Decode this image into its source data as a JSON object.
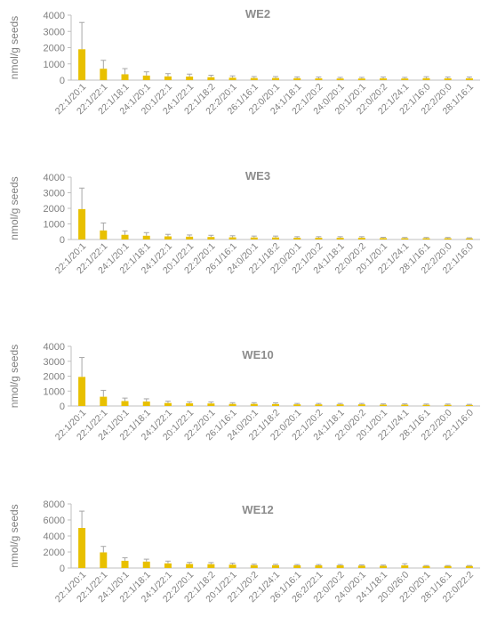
{
  "figure": {
    "bar_color": "#E8C000",
    "axis_color": "#bfbfbf",
    "text_color": "#7f7f7f",
    "title_color": "#8c8c8c"
  },
  "chart_data": [
    {
      "type": "bar",
      "title": "WE2",
      "ylabel": "nmol/g seeds",
      "xlabel": "",
      "ylim": [
        0,
        4000
      ],
      "yticks": [
        0,
        1000,
        2000,
        3000,
        4000
      ],
      "error_bars": true,
      "categories": [
        "22:1/20:1",
        "22:1/22:1",
        "22:1/18:1",
        "24:1/20:1",
        "20:1/22:1",
        "24:1/22:1",
        "22:1/18:2",
        "22:2/20:1",
        "26:1/16:1",
        "22:0/20:1",
        "24:1/18:1",
        "22:1/20:2",
        "24:0/20:1",
        "20:1/20:1",
        "22:0/20:2",
        "22:1/24:1",
        "22:1/16:0",
        "22:2/20:0",
        "28:1/16:1"
      ],
      "values": [
        1900,
        700,
        360,
        280,
        230,
        220,
        180,
        150,
        130,
        130,
        120,
        110,
        100,
        100,
        110,
        100,
        120,
        110,
        110
      ],
      "errors": [
        1650,
        520,
        350,
        230,
        170,
        150,
        120,
        110,
        90,
        90,
        80,
        80,
        70,
        70,
        80,
        70,
        90,
        80,
        80
      ]
    },
    {
      "type": "bar",
      "title": "WE3",
      "ylabel": "nmol/g seeds",
      "xlabel": "",
      "ylim": [
        0,
        4000
      ],
      "yticks": [
        0,
        1000,
        2000,
        3000,
        4000
      ],
      "error_bars": true,
      "categories": [
        "22:1/20:1",
        "22:1/22:1",
        "24:1/20:1",
        "22:1/18:1",
        "24:1/22:1",
        "20:1/22:1",
        "22:2/20:1",
        "26:1/16:1",
        "24:0/20:1",
        "22:1/18:2",
        "22:0/20:1",
        "22:1/20:2",
        "24:1/18:1",
        "22:0/20:2",
        "20:1/20:1",
        "22:1/24:1",
        "28:1/16:1",
        "22:2/20:0",
        "22:1/16:0"
      ],
      "values": [
        1950,
        580,
        300,
        240,
        200,
        180,
        160,
        140,
        130,
        130,
        110,
        110,
        110,
        110,
        90,
        80,
        80,
        80,
        70
      ],
      "errors": [
        1350,
        480,
        250,
        200,
        130,
        110,
        110,
        100,
        90,
        90,
        70,
        70,
        70,
        70,
        50,
        50,
        50,
        50,
        40
      ]
    },
    {
      "type": "bar",
      "title": "WE10",
      "ylabel": "nmol/g seeds",
      "xlabel": "",
      "ylim": [
        0,
        4000
      ],
      "yticks": [
        0,
        1000,
        2000,
        3000,
        4000
      ],
      "error_bars": true,
      "categories": [
        "22:1/20:1",
        "22:1/22:1",
        "24:1/20:1",
        "22:1/18:1",
        "24:1/22:1",
        "20:1/22:1",
        "22:2/20:1",
        "26:1/16:1",
        "24:0/20:1",
        "22:1/18:2",
        "22:0/20:1",
        "22:1/20:2",
        "24:1/18:1",
        "22:0/20:2",
        "20:1/20:1",
        "22:1/24:1",
        "28:1/16:1",
        "22:2/20:0",
        "22:1/16:0"
      ],
      "values": [
        1950,
        620,
        330,
        300,
        200,
        180,
        170,
        140,
        140,
        130,
        110,
        110,
        110,
        110,
        90,
        90,
        80,
        80,
        70
      ],
      "errors": [
        1300,
        430,
        200,
        180,
        120,
        100,
        100,
        80,
        80,
        80,
        60,
        60,
        60,
        60,
        50,
        50,
        50,
        50,
        40
      ]
    },
    {
      "type": "bar",
      "title": "WE12",
      "ylabel": "nmol/g seeds",
      "xlabel": "",
      "ylim": [
        0,
        8000
      ],
      "yticks": [
        0,
        2000,
        4000,
        6000,
        8000
      ],
      "error_bars": true,
      "categories": [
        "22:1/20:1",
        "22:1/22:1",
        "24:1/20:1",
        "22:1/18:1",
        "24:1/22:1",
        "22:2/20:1",
        "22:1/18:2",
        "20:1/22:1",
        "22:1/20:2",
        "22:1/24:1",
        "26:1/16:1",
        "26:2/22:1",
        "22:0/20:2",
        "24:0/20:1",
        "24:1/18:1",
        "20:0/26:0",
        "22:0/20:1",
        "28:1/16:1",
        "22:0/22:2"
      ],
      "values": [
        5000,
        1950,
        900,
        800,
        580,
        500,
        480,
        420,
        360,
        350,
        330,
        330,
        330,
        300,
        280,
        330,
        250,
        250,
        250
      ],
      "errors": [
        2100,
        750,
        380,
        300,
        280,
        200,
        200,
        180,
        120,
        110,
        100,
        100,
        100,
        90,
        90,
        200,
        60,
        60,
        60
      ]
    }
  ]
}
